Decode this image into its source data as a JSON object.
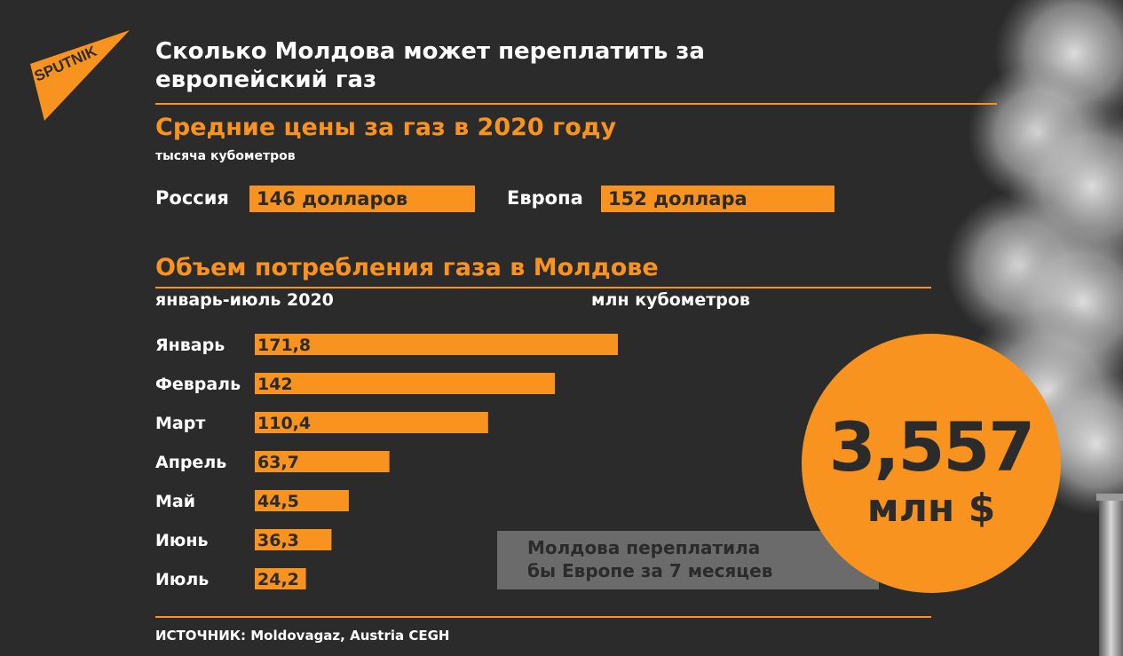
{
  "logo_text": "SPUTNIK",
  "title": "Сколько Молдова может переплатить за европейский газ",
  "prices": {
    "heading": "Средние цены за газ в 2020 году",
    "unit": "тысяча кубометров",
    "russia_label": "Россия",
    "russia_value": "146 долларов",
    "europe_label": "Европа",
    "europe_value": "152 доллара"
  },
  "consumption": {
    "heading": "Объем потребления газа в Молдове",
    "period": "январь-июль 2020",
    "unit": "млн кубометров"
  },
  "chart_data": {
    "type": "bar",
    "orientation": "horizontal",
    "title": "Объем потребления газа в Молдове",
    "subtitle": "январь-июль 2020",
    "unit": "млн кубометров",
    "categories": [
      "Январь",
      "Февраль",
      "Март",
      "Апрель",
      "Май",
      "Июнь",
      "Июль"
    ],
    "values": [
      171.8,
      142,
      110.4,
      63.7,
      44.5,
      36.3,
      24.2
    ],
    "value_labels": [
      "171,8",
      "142",
      "110,4",
      "63,7",
      "44,5",
      "36,3",
      "24,2"
    ],
    "bar_color": "#f7931e",
    "label_color": "#2b2b2b"
  },
  "callout": {
    "number": "3,557",
    "unit": "млн $",
    "note_line1": "Молдова переплатила",
    "note_line2": "бы Европе за 7 месяцев"
  },
  "source": "ИСТОЧНИК: Moldovagaz, Austria CEGH",
  "colors": {
    "background": "#2b2b2b",
    "accent": "#f7931e",
    "note_box": "#6b6b6b"
  }
}
